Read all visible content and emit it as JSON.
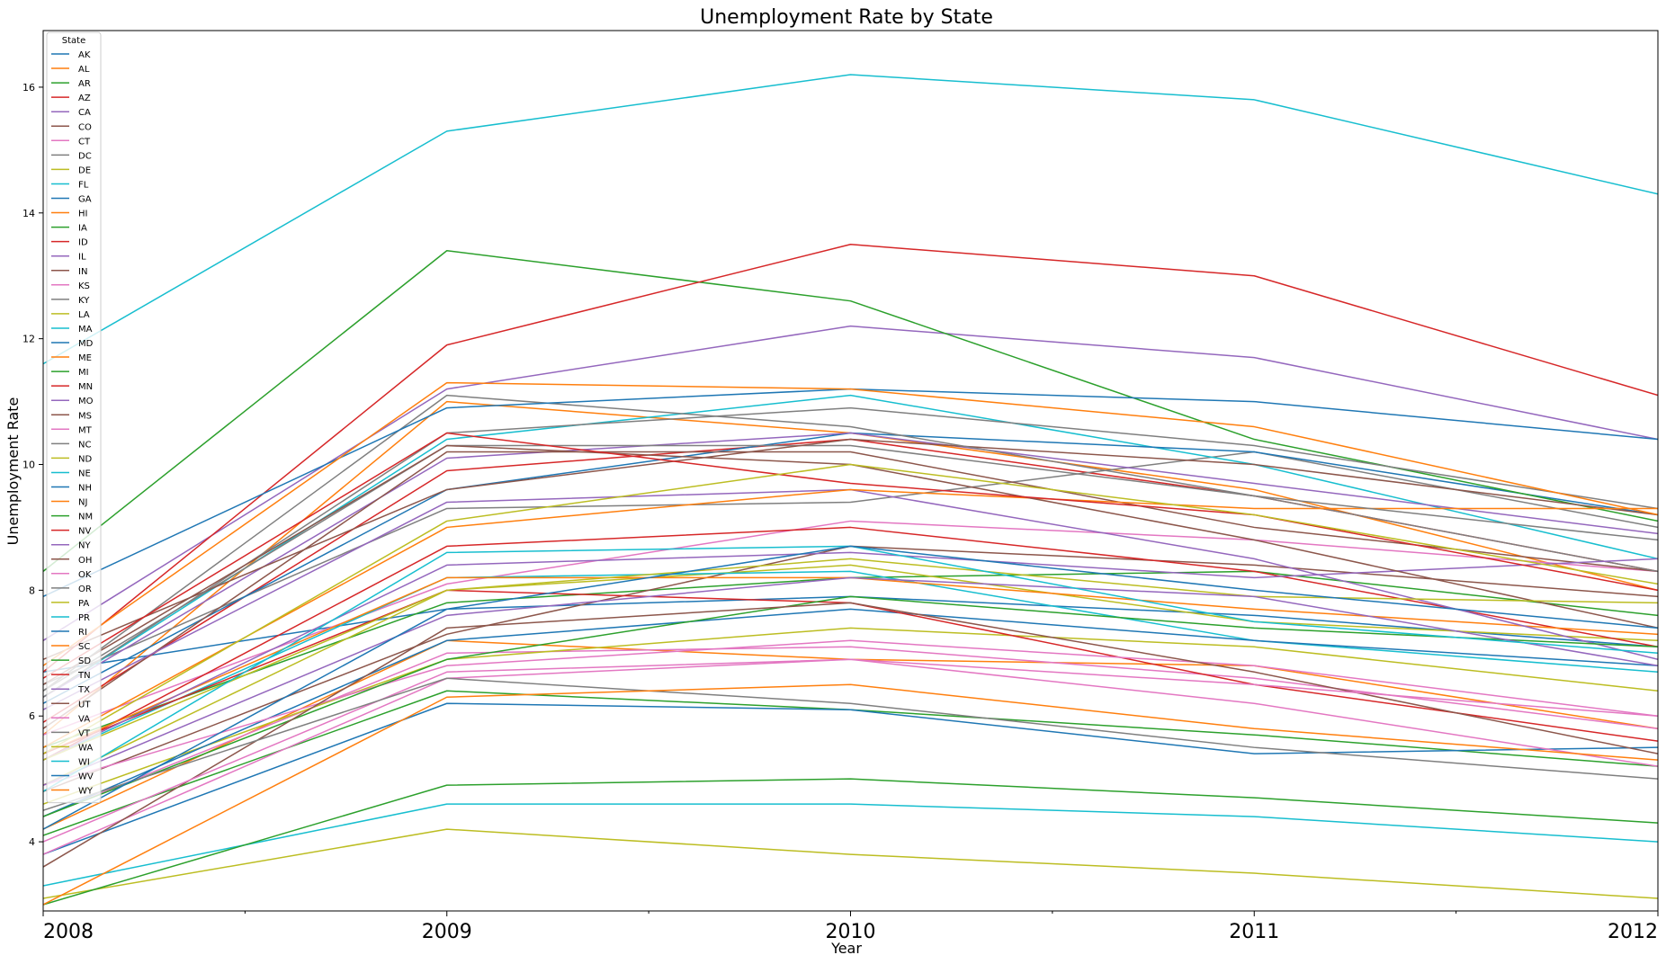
{
  "chart_data": {
    "type": "line",
    "title": "Unemployment Rate by State",
    "xlabel": "Year",
    "ylabel": "Unemployment Rate",
    "x": [
      2008,
      2009,
      2010,
      2011,
      2012
    ],
    "x_tick_labels": [
      "2008",
      "2009",
      "2010",
      "2011",
      "2012"
    ],
    "xlim": [
      2008,
      2012
    ],
    "ylim": [
      2.9,
      16.9
    ],
    "y_ticks": [
      4,
      6,
      8,
      10,
      12,
      14,
      16
    ],
    "y_tick_labels": [
      "4",
      "6",
      "8",
      "10",
      "12",
      "14",
      "16"
    ],
    "grid": false,
    "legend": {
      "title": "State",
      "placement": "top-left"
    },
    "series": [
      {
        "name": "AK",
        "values": [
          6.7,
          7.7,
          7.9,
          7.6,
          7.1
        ]
      },
      {
        "name": "AL",
        "values": [
          5.7,
          11.0,
          10.5,
          9.6,
          8.0
        ]
      },
      {
        "name": "AR",
        "values": [
          5.5,
          7.8,
          8.2,
          8.3,
          7.6
        ]
      },
      {
        "name": "AZ",
        "values": [
          5.9,
          9.9,
          10.4,
          9.5,
          8.3
        ]
      },
      {
        "name": "CA",
        "values": [
          7.2,
          11.2,
          12.2,
          11.7,
          10.4
        ]
      },
      {
        "name": "CO",
        "values": [
          4.8,
          7.3,
          8.7,
          8.4,
          7.9
        ]
      },
      {
        "name": "CT",
        "values": [
          5.7,
          8.1,
          9.1,
          8.8,
          8.3
        ]
      },
      {
        "name": "DC",
        "values": [
          6.5,
          9.3,
          9.4,
          10.2,
          9.0
        ]
      },
      {
        "name": "DE",
        "values": [
          4.9,
          8.0,
          8.4,
          7.5,
          7.2
        ]
      },
      {
        "name": "FL",
        "values": [
          6.3,
          10.4,
          11.1,
          10.0,
          8.5
        ]
      },
      {
        "name": "GA",
        "values": [
          6.2,
          9.6,
          10.5,
          10.2,
          9.2
        ]
      },
      {
        "name": "HI",
        "values": [
          4.2,
          7.2,
          6.9,
          6.8,
          5.8
        ]
      },
      {
        "name": "IA",
        "values": [
          4.1,
          6.4,
          6.1,
          5.7,
          5.2
        ]
      },
      {
        "name": "ID",
        "values": [
          5.3,
          8.7,
          9.0,
          8.3,
          7.1
        ]
      },
      {
        "name": "IL",
        "values": [
          6.3,
          10.1,
          10.5,
          9.7,
          8.9
        ]
      },
      {
        "name": "IN",
        "values": [
          5.8,
          10.2,
          10.2,
          9.0,
          8.3
        ]
      },
      {
        "name": "KS",
        "values": [
          4.4,
          7.0,
          7.1,
          6.6,
          5.8
        ]
      },
      {
        "name": "KY",
        "values": [
          6.4,
          10.3,
          10.3,
          9.5,
          8.3
        ]
      },
      {
        "name": "LA",
        "values": [
          4.6,
          6.9,
          7.4,
          7.1,
          6.4
        ]
      },
      {
        "name": "MA",
        "values": [
          5.3,
          8.2,
          8.3,
          7.2,
          6.7
        ]
      },
      {
        "name": "MD",
        "values": [
          4.4,
          7.2,
          7.7,
          7.2,
          6.8
        ]
      },
      {
        "name": "ME",
        "values": [
          5.4,
          8.2,
          8.2,
          7.7,
          7.3
        ]
      },
      {
        "name": "MI",
        "values": [
          8.3,
          13.4,
          12.6,
          10.4,
          9.1
        ]
      },
      {
        "name": "MN",
        "values": [
          5.4,
          8.0,
          7.8,
          6.5,
          5.6
        ]
      },
      {
        "name": "MO",
        "values": [
          6.1,
          9.4,
          9.6,
          8.5,
          6.9
        ]
      },
      {
        "name": "MS",
        "values": [
          6.9,
          9.6,
          10.4,
          10.0,
          9.2
        ]
      },
      {
        "name": "MT",
        "values": [
          4.9,
          6.8,
          7.2,
          6.8,
          6.0
        ]
      },
      {
        "name": "NC",
        "values": [
          6.3,
          10.5,
          10.9,
          10.3,
          9.3
        ]
      },
      {
        "name": "ND",
        "values": [
          3.1,
          4.2,
          3.8,
          3.5,
          3.1
        ]
      },
      {
        "name": "NE",
        "values": [
          3.3,
          4.6,
          4.6,
          4.4,
          4.0
        ]
      },
      {
        "name": "NH",
        "values": [
          3.8,
          6.2,
          6.1,
          5.4,
          5.5
        ]
      },
      {
        "name": "NJ",
        "values": [
          5.5,
          9.0,
          9.6,
          9.3,
          9.3
        ]
      },
      {
        "name": "NM",
        "values": [
          4.4,
          6.9,
          7.9,
          7.4,
          7.1
        ]
      },
      {
        "name": "NV",
        "values": [
          6.7,
          11.9,
          13.5,
          13.0,
          11.1
        ]
      },
      {
        "name": "NY",
        "values": [
          5.3,
          8.4,
          8.6,
          8.2,
          8.5
        ]
      },
      {
        "name": "OH",
        "values": [
          6.5,
          10.3,
          10.0,
          8.8,
          7.4
        ]
      },
      {
        "name": "OK",
        "values": [
          3.8,
          6.6,
          6.9,
          6.2,
          5.2
        ]
      },
      {
        "name": "OR",
        "values": [
          6.4,
          11.1,
          10.6,
          9.5,
          8.8
        ]
      },
      {
        "name": "PA",
        "values": [
          5.3,
          8.0,
          8.5,
          7.9,
          7.8
        ]
      },
      {
        "name": "PR",
        "values": [
          11.6,
          15.3,
          16.2,
          15.8,
          14.3
        ]
      },
      {
        "name": "RI",
        "values": [
          7.9,
          10.9,
          11.2,
          11.0,
          10.4
        ]
      },
      {
        "name": "SC",
        "values": [
          6.8,
          11.3,
          11.2,
          10.6,
          9.2
        ]
      },
      {
        "name": "SD",
        "values": [
          3.0,
          4.9,
          5.0,
          4.7,
          4.3
        ]
      },
      {
        "name": "TN",
        "values": [
          6.6,
          10.5,
          9.7,
          9.2,
          8.0
        ]
      },
      {
        "name": "TX",
        "values": [
          4.9,
          7.6,
          8.2,
          7.9,
          6.8
        ]
      },
      {
        "name": "UT",
        "values": [
          3.6,
          7.4,
          7.8,
          6.7,
          5.4
        ]
      },
      {
        "name": "VA",
        "values": [
          4.0,
          6.7,
          6.9,
          6.5,
          6.0
        ]
      },
      {
        "name": "VT",
        "values": [
          4.5,
          6.6,
          6.2,
          5.5,
          5.0
        ]
      },
      {
        "name": "WA",
        "values": [
          5.4,
          9.1,
          10.0,
          9.2,
          8.1
        ]
      },
      {
        "name": "WI",
        "values": [
          4.8,
          8.6,
          8.7,
          7.5,
          7.0
        ]
      },
      {
        "name": "WV",
        "values": [
          4.2,
          7.7,
          8.7,
          8.0,
          7.4
        ]
      },
      {
        "name": "WY",
        "values": [
          3.0,
          6.3,
          6.5,
          5.8,
          5.3
        ]
      }
    ]
  },
  "colors": [
    "#1f77b4",
    "#ff7f0e",
    "#2ca02c",
    "#d62728",
    "#9467bd",
    "#8c564b",
    "#e377c2",
    "#7f7f7f",
    "#bcbd22",
    "#17becf"
  ]
}
